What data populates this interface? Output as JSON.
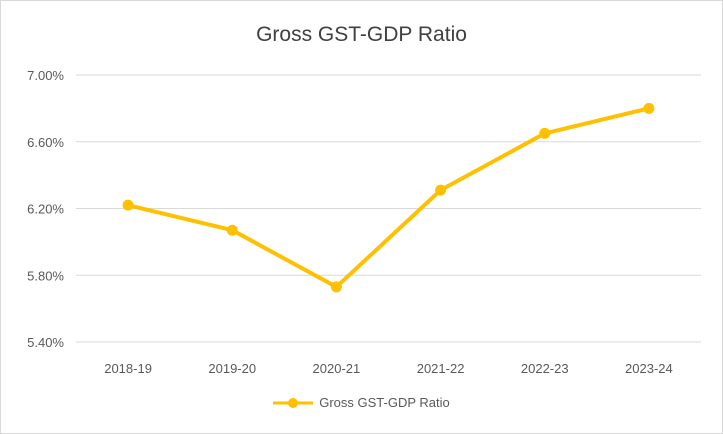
{
  "chart_data": {
    "type": "line",
    "title": "Gross GST-GDP Ratio",
    "xlabel": "",
    "ylabel": "",
    "categories": [
      "2018-19",
      "2019-20",
      "2020-21",
      "2021-22",
      "2022-23",
      "2023-24"
    ],
    "series": [
      {
        "name": "Gross GST-GDP Ratio",
        "values": [
          6.22,
          6.07,
          5.73,
          6.31,
          6.65,
          6.8
        ],
        "color": "#ffc000"
      }
    ],
    "ylim": [
      5.4,
      7.0
    ],
    "yticks": [
      5.4,
      5.8,
      6.2,
      6.6,
      7.0
    ],
    "ytick_labels": [
      "5.40%",
      "5.80%",
      "6.20%",
      "6.60%",
      "7.00%"
    ],
    "grid": true,
    "legend_position": "bottom",
    "colors": {
      "gridline": "#d9d9d9",
      "text": "#595959",
      "title": "#404040"
    }
  }
}
